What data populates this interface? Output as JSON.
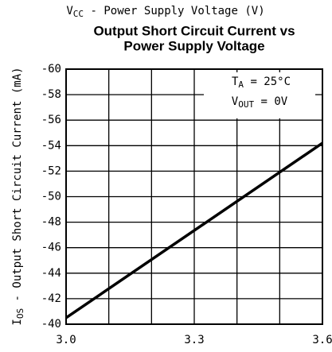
{
  "chart_data": {
    "type": "line",
    "top_label": {
      "main": "V",
      "sub": "CC",
      "rest": " - Power Supply Voltage (V)"
    },
    "title": [
      "Output Short Circuit Current vs",
      "Power Supply Voltage"
    ],
    "y_label": {
      "main": "I",
      "sub": "OS",
      "rest": " - Output Short Circuit Current (mA)"
    },
    "annotations": [
      {
        "main": "T",
        "sub": "A",
        "rest": " = 25°C"
      },
      {
        "main": "V",
        "sub": "OUT",
        "rest": " = 0V"
      }
    ],
    "series": [
      {
        "color": "#000000",
        "x": [
          3.0,
          3.6
        ],
        "values": [
          -40.5,
          -54.2
        ]
      }
    ],
    "xlim": [
      3.0,
      3.6
    ],
    "xticks": [
      {
        "value": 3.0,
        "label": "3.0"
      },
      3.3,
      3.6
    ],
    "xgrid": [
      3.0,
      3.1,
      3.2,
      3.3,
      3.4,
      3.5,
      3.6
    ],
    "ylim": [
      -40,
      -60
    ],
    "yticks": [
      -60,
      -58,
      -56,
      -54,
      -52,
      -50,
      -48,
      -46,
      -44,
      -42,
      -40
    ],
    "grid": true
  }
}
